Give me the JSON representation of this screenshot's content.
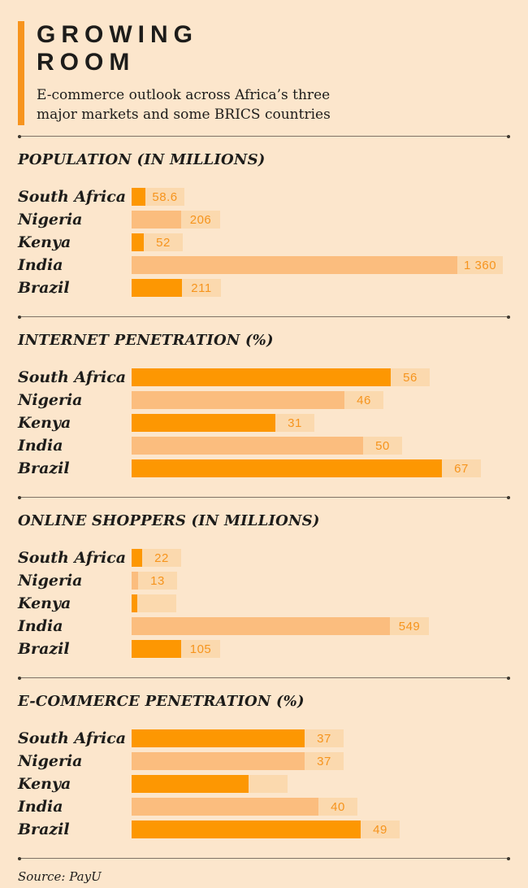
{
  "palette": {
    "bg": "#fce6cc",
    "accent": "#f7941e",
    "ink": "#1d1c1a",
    "bar_dark": "#fd9702",
    "bar_medium": "#fbbd7e",
    "chip": "#fbd9ae",
    "value_ink": "#f6941d",
    "divider": "#7d7265",
    "divider_dot": "#3e382f"
  },
  "header": {
    "title_line1": "GROWING",
    "title_line2": "ROOM",
    "subtitle_line1": "E-commerce outlook across Africa’s three",
    "subtitle_line2": "major markets and some BRICS countries"
  },
  "sections": [
    {
      "heading": "POPULATION (IN MILLIONS)",
      "rows": [
        {
          "country": "South Africa",
          "display": "58.6",
          "value": 58.6
        },
        {
          "country": "Nigeria",
          "display": "206",
          "value": 206
        },
        {
          "country": "Kenya",
          "display": "52",
          "value": 52
        },
        {
          "country": "India",
          "display": "1 360",
          "value": 1360
        },
        {
          "country": "Brazil",
          "display": "211",
          "value": 211
        }
      ]
    },
    {
      "heading": "INTERNET PENETRATION (%)",
      "rows": [
        {
          "country": "South Africa",
          "display": "56",
          "value": 56
        },
        {
          "country": "Nigeria",
          "display": "46",
          "value": 46
        },
        {
          "country": "Kenya",
          "display": "31",
          "value": 31
        },
        {
          "country": "India",
          "display": "50",
          "value": 50
        },
        {
          "country": "Brazil",
          "display": "67",
          "value": 67
        }
      ]
    },
    {
      "heading": "ONLINE SHOPPERS (IN MILLIONS)",
      "rows": [
        {
          "country": "South Africa",
          "display": "22",
          "value": 22
        },
        {
          "country": "Nigeria",
          "display": "13",
          "value": 13
        },
        {
          "country": "Kenya",
          "display": "",
          "value": 12
        },
        {
          "country": "India",
          "display": "549",
          "value": 549
        },
        {
          "country": "Brazil",
          "display": "105",
          "value": 105
        }
      ]
    },
    {
      "heading": "E-COMMERCE PENETRATION (%)",
      "rows": [
        {
          "country": "South Africa",
          "display": "37",
          "value": 37
        },
        {
          "country": "Nigeria",
          "display": "37",
          "value": 37
        },
        {
          "country": "Kenya",
          "display": "",
          "value": 25
        },
        {
          "country": "India",
          "display": "40",
          "value": 40
        },
        {
          "country": "Brazil",
          "display": "49",
          "value": 49
        }
      ]
    }
  ],
  "source": "Source: PayU",
  "chart_data": [
    {
      "type": "bar",
      "title": "POPULATION (IN MILLIONS)",
      "categories": [
        "South Africa",
        "Nigeria",
        "Kenya",
        "India",
        "Brazil"
      ],
      "values": [
        58.6,
        206,
        52,
        1360,
        211
      ],
      "value_labels": [
        "58.6",
        "206",
        "52",
        "1 360",
        "211"
      ],
      "orientation": "horizontal",
      "grid": false,
      "legend": false
    },
    {
      "type": "bar",
      "title": "INTERNET PENETRATION (%)",
      "categories": [
        "South Africa",
        "Nigeria",
        "Kenya",
        "India",
        "Brazil"
      ],
      "values": [
        56,
        46,
        31,
        50,
        67
      ],
      "value_labels": [
        "56",
        "46",
        "31",
        "50",
        "67"
      ],
      "orientation": "horizontal",
      "grid": false,
      "legend": false
    },
    {
      "type": "bar",
      "title": "ONLINE SHOPPERS (IN MILLIONS)",
      "categories": [
        "South Africa",
        "Nigeria",
        "Kenya",
        "India",
        "Brazil"
      ],
      "values": [
        22,
        13,
        null,
        549,
        105
      ],
      "value_labels": [
        "22",
        "13",
        "",
        "549",
        "105"
      ],
      "note": "Kenya bar drawn but its value label is not visible",
      "orientation": "horizontal",
      "grid": false,
      "legend": false
    },
    {
      "type": "bar",
      "title": "E-COMMERCE PENETRATION (%)",
      "categories": [
        "South Africa",
        "Nigeria",
        "Kenya",
        "India",
        "Brazil"
      ],
      "values": [
        37,
        37,
        null,
        40,
        49
      ],
      "value_labels": [
        "37",
        "37",
        "",
        "40",
        "49"
      ],
      "note": "Kenya bar drawn but its value label is not visible",
      "orientation": "horizontal",
      "grid": false,
      "legend": false
    }
  ]
}
